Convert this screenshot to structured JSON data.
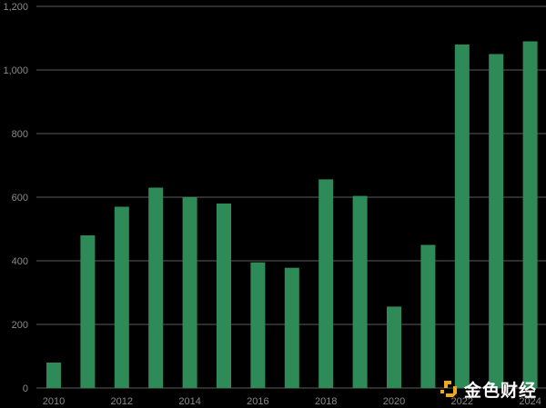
{
  "chart_data": {
    "type": "bar",
    "categories": [
      "2010",
      "2011",
      "2012",
      "2013",
      "2014",
      "2015",
      "2016",
      "2017",
      "2018",
      "2019",
      "2020",
      "2021",
      "2022",
      "2023",
      "2024"
    ],
    "values": [
      80,
      480,
      570,
      630,
      600,
      580,
      395,
      378,
      656,
      604,
      256,
      450,
      1080,
      1050,
      1090
    ],
    "x_tick_labels": [
      "2010",
      "2012",
      "2014",
      "2016",
      "2018",
      "2020",
      "2022",
      "2024"
    ],
    "y_tick_labels": [
      "0",
      "200",
      "400",
      "600",
      "800",
      "1,000",
      "1,200"
    ],
    "ylim": [
      0,
      1200
    ],
    "title": "",
    "xlabel": "",
    "ylabel": "",
    "grid": "horizontal",
    "bar_color": "#2e8b57"
  },
  "watermark": {
    "text": "金色财经",
    "logo_color": "#f0a81c"
  }
}
